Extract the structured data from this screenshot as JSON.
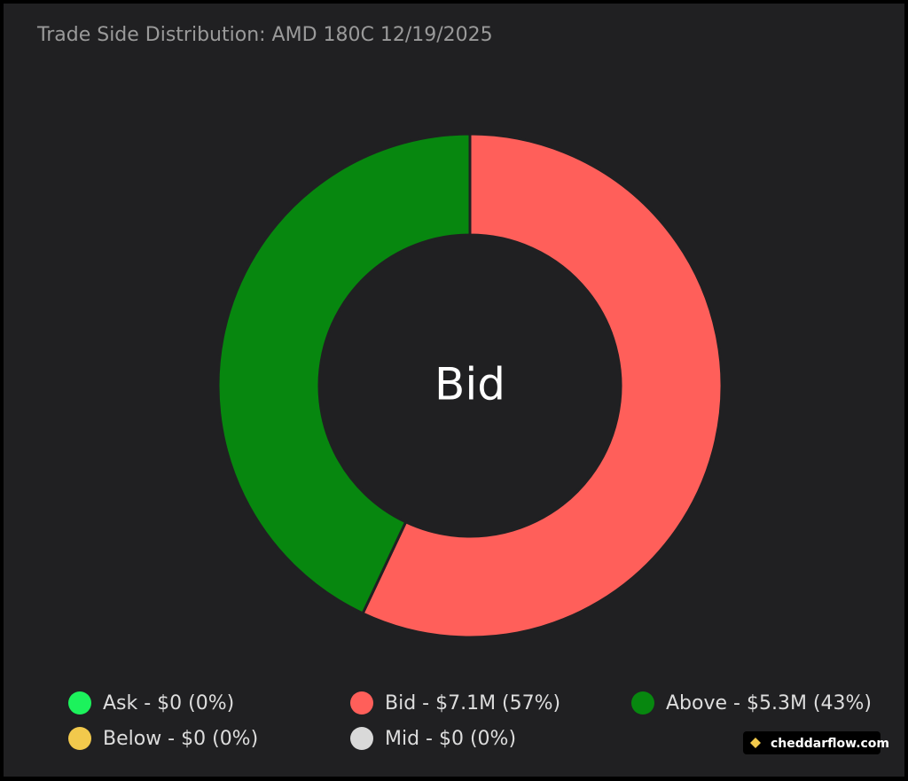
{
  "chart_data": {
    "type": "pie",
    "donut": true,
    "title": "Trade Side Distribution: AMD 180C 12/19/2025",
    "center_label": "Bid",
    "categories": [
      "Ask - $0 (0%)",
      "Bid - $7.1M (57%)",
      "Above - $5.3M (43%)",
      "Below - $0 (0%)",
      "Mid - $0 (0%)"
    ],
    "values": [
      0,
      57,
      43,
      0,
      0
    ],
    "colors": [
      "#1cf25c",
      "#ff5f5a",
      "#07870f",
      "#f2c94c",
      "#d9d9d9"
    ]
  },
  "watermark": "cheddarflow.com"
}
